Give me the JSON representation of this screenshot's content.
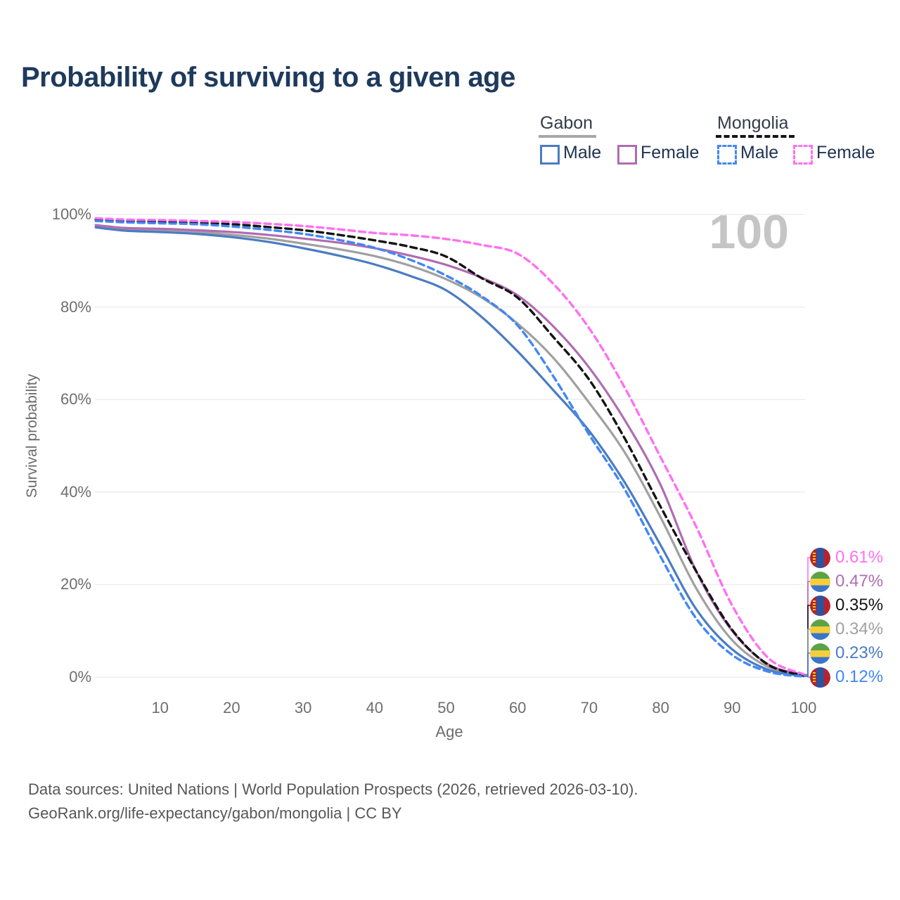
{
  "title": "Probability of surviving to a given age",
  "watermark_age": "100",
  "legend": {
    "groups": [
      {
        "label": "Gabon",
        "line_style": "solid",
        "underline_color": "#a8a8a8",
        "items": [
          {
            "label": "Male",
            "color": "#4a7cc2",
            "dashed": false
          },
          {
            "label": "Female",
            "color": "#b06cb2",
            "dashed": false
          }
        ]
      },
      {
        "label": "Mongolia",
        "line_style": "dashed",
        "underline_color": "#141414",
        "items": [
          {
            "label": "Male",
            "color": "#4287f5",
            "dashed": true
          },
          {
            "label": "Female",
            "color": "#ff70f0",
            "dashed": true
          }
        ]
      }
    ]
  },
  "chart_data": {
    "type": "line",
    "title": "Probability of surviving to a given age",
    "xlabel": "Age",
    "ylabel": "Survival probability",
    "xlim": [
      0,
      100
    ],
    "ylim": [
      0,
      100
    ],
    "x_ticks": [
      10,
      20,
      30,
      40,
      50,
      60,
      70,
      80,
      90,
      100
    ],
    "y_ticks": [
      0,
      20,
      40,
      60,
      80,
      100
    ],
    "y_tick_suffix": "%",
    "grid": "horizontal-only",
    "x": [
      1,
      5,
      10,
      15,
      20,
      25,
      30,
      35,
      40,
      45,
      50,
      55,
      60,
      65,
      70,
      75,
      80,
      85,
      90,
      95,
      100
    ],
    "series": [
      {
        "name": "Gabon Total",
        "country": "Gabon",
        "group": "Total",
        "color": "#a0a0a0",
        "dashed": false,
        "flag": "gabon",
        "end_label": "0.34%",
        "values": [
          97.4,
          96.8,
          96.5,
          96.2,
          95.6,
          94.8,
          93.7,
          92.5,
          91.0,
          88.9,
          86.0,
          82.0,
          76.4,
          69.0,
          59.3,
          48.5,
          34.5,
          19.1,
          8.0,
          2.2,
          0.34
        ]
      },
      {
        "name": "Gabon Female",
        "country": "Gabon",
        "group": "Female",
        "color": "#b06cb2",
        "dashed": false,
        "flag": "gabon",
        "end_label": "0.47%",
        "values": [
          97.7,
          97.1,
          96.9,
          96.6,
          96.2,
          95.6,
          94.8,
          93.9,
          92.7,
          91.1,
          89.1,
          86.3,
          82.5,
          75.8,
          66.9,
          55.5,
          41.5,
          22.8,
          10.0,
          2.8,
          0.47
        ]
      },
      {
        "name": "Gabon Male",
        "country": "Gabon",
        "group": "Male",
        "color": "#4a7cc2",
        "dashed": false,
        "flag": "gabon",
        "end_label": "0.23%",
        "values": [
          97.2,
          96.5,
          96.2,
          95.8,
          95.1,
          94.1,
          92.7,
          91.1,
          89.2,
          86.7,
          83.6,
          77.8,
          70.4,
          62.0,
          53.2,
          42.0,
          28.5,
          14.6,
          6.0,
          1.6,
          0.23
        ]
      },
      {
        "name": "Mongolia Total",
        "country": "Mongolia",
        "group": "Total",
        "color": "#141414",
        "dashed": true,
        "flag": "mongolia",
        "end_label": "0.35%",
        "values": [
          98.9,
          98.6,
          98.4,
          98.2,
          97.9,
          97.3,
          96.6,
          95.6,
          94.4,
          93.0,
          90.9,
          86.2,
          82.0,
          73.5,
          64.3,
          51.5,
          36.8,
          22.8,
          10.2,
          2.7,
          0.35
        ]
      },
      {
        "name": "Mongolia Male",
        "country": "Mongolia",
        "group": "Male",
        "color": "#4287f5",
        "dashed": true,
        "flag": "mongolia",
        "end_label": "0.12%",
        "values": [
          98.6,
          98.3,
          98.1,
          97.9,
          97.4,
          96.7,
          95.8,
          94.5,
          92.8,
          90.2,
          86.8,
          82.3,
          76.0,
          65.0,
          52.4,
          40.5,
          26.0,
          12.6,
          4.8,
          1.2,
          0.12
        ]
      },
      {
        "name": "Mongolia Female",
        "country": "Mongolia",
        "group": "Female",
        "color": "#ff70f0",
        "dashed": true,
        "flag": "mongolia",
        "end_label": "0.61%",
        "values": [
          99.2,
          98.9,
          98.8,
          98.6,
          98.4,
          98.0,
          97.5,
          96.8,
          96.0,
          95.5,
          94.7,
          93.4,
          91.5,
          85.0,
          75.4,
          62.5,
          47.5,
          32.4,
          15.5,
          4.2,
          0.61
        ]
      }
    ]
  },
  "flags": {
    "gabon_colors": [
      "#5da345",
      "#f5ce3e",
      "#3c74c8"
    ],
    "mongolia_colors": [
      "#b5232e",
      "#2456a5",
      "#f9cf02"
    ]
  },
  "footer": {
    "line1": "Data sources: United Nations | World Population Prospects (2026, retrieved 2026-03-10).",
    "line2": "GeoRank.org/life-expectancy/gabon/mongolia | CC BY"
  }
}
